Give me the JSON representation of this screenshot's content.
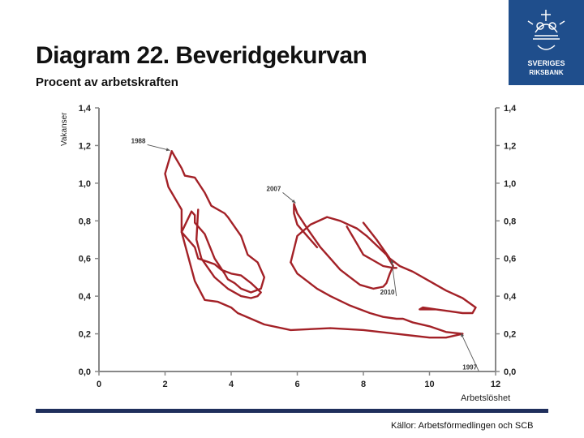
{
  "title": "Diagram 22. Beveridgekurvan",
  "subtitle": "Procent av arbetskraften",
  "source": "Källor: Arbetsförmedlingen och SCB",
  "logo": {
    "line1": "SVERIGES",
    "line2": "RIKSBANK",
    "color": "#1f4e8c"
  },
  "chart_data": {
    "type": "line",
    "xlabel": "Arbetslöshet",
    "ylabel": "Vakanser",
    "xlim": [
      0,
      12
    ],
    "ylim": [
      0,
      1.4
    ],
    "xticks": [
      "0",
      "2",
      "4",
      "6",
      "8",
      "10",
      "12"
    ],
    "yticks": [
      "0,0",
      "0,2",
      "0,4",
      "0,6",
      "0,8",
      "1,0",
      "1,2",
      "1,4"
    ],
    "line_color": "#a32127",
    "grid": false,
    "series": [
      {
        "x": [
          2.2,
          2.0,
          2.1,
          2.5,
          2.5,
          2.9,
          3.0,
          3.5,
          3.7,
          4.0,
          4.3,
          4.6,
          4.9,
          4.8,
          4.6,
          4.3,
          3.9,
          3.5,
          3.1,
          2.95,
          3.0
        ],
        "y": [
          1.17,
          1.05,
          0.98,
          0.86,
          0.74,
          0.66,
          0.6,
          0.57,
          0.54,
          0.52,
          0.51,
          0.47,
          0.42,
          0.4,
          0.39,
          0.4,
          0.44,
          0.5,
          0.6,
          0.7,
          0.86
        ]
      },
      {
        "x": [
          2.2,
          2.3,
          2.5,
          2.6,
          2.9,
          3.2,
          3.4,
          3.8,
          3.9,
          4.3,
          4.5,
          4.8,
          5.0,
          4.9,
          4.6,
          4.3,
          4.1,
          3.9,
          3.8,
          3.5,
          3.2,
          2.9,
          2.9,
          2.8,
          2.5,
          2.9,
          3.2,
          3.6,
          4.0,
          4.2,
          5.0,
          5.8,
          7.0,
          8.0,
          9.0,
          10.0,
          10.5,
          11.0
        ],
        "y": [
          1.17,
          1.14,
          1.08,
          1.04,
          1.03,
          0.95,
          0.88,
          0.84,
          0.82,
          0.72,
          0.62,
          0.58,
          0.5,
          0.44,
          0.42,
          0.44,
          0.47,
          0.49,
          0.52,
          0.6,
          0.73,
          0.79,
          0.83,
          0.85,
          0.74,
          0.48,
          0.38,
          0.37,
          0.34,
          0.31,
          0.25,
          0.22,
          0.23,
          0.22,
          0.2,
          0.18,
          0.18,
          0.2
        ]
      },
      {
        "x": [
          11.0,
          10.5,
          10.0,
          9.5,
          9.2,
          9.0,
          8.6,
          8.2,
          7.6,
          7.0,
          6.6,
          6.3,
          6.0,
          5.8
        ],
        "y": [
          0.2,
          0.21,
          0.24,
          0.26,
          0.28,
          0.28,
          0.29,
          0.31,
          0.35,
          0.4,
          0.44,
          0.48,
          0.52,
          0.58
        ]
      },
      {
        "x": [
          5.8,
          6.0,
          6.4,
          6.9,
          7.3,
          7.8,
          8.1,
          8.4,
          8.7,
          8.9,
          8.8,
          8.7,
          8.6,
          8.3,
          7.9,
          7.6,
          7.3,
          7.0,
          6.7,
          6.3,
          6.0,
          5.9,
          5.9,
          6.0,
          6.3,
          6.6
        ],
        "y": [
          0.58,
          0.72,
          0.78,
          0.82,
          0.8,
          0.76,
          0.72,
          0.67,
          0.62,
          0.56,
          0.52,
          0.47,
          0.45,
          0.44,
          0.46,
          0.5,
          0.54,
          0.6,
          0.66,
          0.76,
          0.84,
          0.89,
          0.84,
          0.78,
          0.72,
          0.66
        ]
      },
      {
        "x": [
          8.0,
          8.4,
          8.8,
          9.1,
          9.5,
          10.0,
          10.5,
          11.0,
          11.4,
          11.3,
          11.0,
          10.6,
          10.2,
          9.9,
          9.7,
          9.8,
          10.2
        ],
        "y": [
          0.79,
          0.7,
          0.6,
          0.56,
          0.53,
          0.48,
          0.43,
          0.39,
          0.34,
          0.31,
          0.31,
          0.32,
          0.33,
          0.33,
          0.33,
          0.34,
          0.33
        ]
      },
      {
        "x": [
          7.5,
          7.8,
          8.0,
          8.3,
          8.6,
          8.9,
          9.0
        ],
        "y": [
          0.77,
          0.68,
          0.62,
          0.59,
          0.56,
          0.55,
          0.55
        ]
      }
    ],
    "annotations": [
      {
        "text": "1988",
        "target_x": 2.2,
        "target_y": 1.17
      },
      {
        "text": "2007",
        "target_x": 6.0,
        "target_y": 0.89
      },
      {
        "text": "2010",
        "target_x": 8.9,
        "target_y": 0.59
      },
      {
        "text": "1997",
        "target_x": 11.0,
        "target_y": 0.2
      }
    ]
  }
}
